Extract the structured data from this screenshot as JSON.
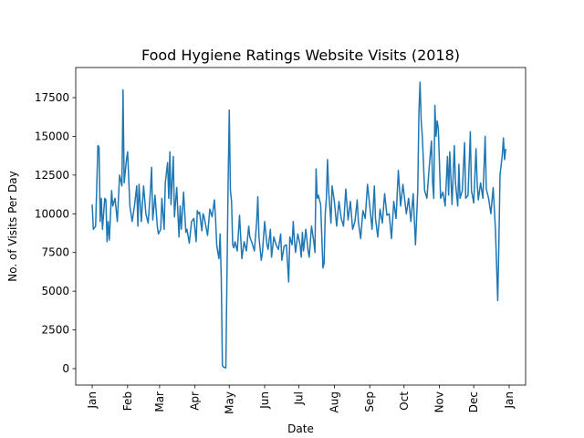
{
  "chart_data": {
    "type": "line",
    "title": "Food Hygiene Ratings Website Visits (2018)",
    "xlabel": "Date",
    "ylabel": "No. of Visits Per Day",
    "color": "#1f77b4",
    "x": [
      0,
      1,
      3,
      5,
      6,
      7,
      8,
      9,
      11,
      12,
      13,
      14,
      15,
      17,
      18,
      20,
      22,
      24,
      26,
      27,
      28,
      30,
      31,
      33,
      35,
      37,
      39,
      40,
      41,
      43,
      45,
      47,
      49,
      51,
      52,
      53,
      55,
      57,
      58,
      60,
      61,
      63,
      64,
      66,
      67,
      68,
      69,
      71,
      72,
      74,
      76,
      77,
      78,
      80,
      82,
      83,
      85,
      87,
      89,
      91,
      92,
      93,
      94,
      96,
      97,
      98,
      100,
      101,
      103,
      105,
      107,
      108,
      109,
      110,
      111,
      112,
      113,
      114,
      115,
      117,
      119,
      120,
      121,
      122,
      123,
      124,
      125,
      127,
      129,
      130,
      131,
      133,
      135,
      137,
      138,
      140,
      142,
      144,
      145,
      146,
      148,
      149,
      151,
      153,
      154,
      156,
      157,
      159,
      161,
      163,
      165,
      166,
      168,
      170,
      172,
      173,
      175,
      176,
      177,
      178,
      180,
      182,
      183,
      184,
      185,
      187,
      189,
      190,
      192,
      194,
      195,
      196,
      197,
      198,
      200,
      202,
      203,
      204,
      205,
      206,
      207,
      209,
      210,
      212,
      214,
      216,
      218,
      220,
      222,
      224,
      226,
      228,
      230,
      232,
      233,
      235,
      237,
      239,
      241,
      243,
      245,
      247,
      248,
      250,
      252,
      254,
      256,
      258,
      260,
      262,
      264,
      266,
      268,
      270,
      272,
      275,
      277,
      279,
      281,
      283,
      285,
      286,
      287,
      288,
      289,
      291,
      293,
      295,
      297,
      298,
      299,
      300,
      301,
      302,
      303,
      305,
      307,
      309,
      311,
      312,
      313,
      315,
      317,
      318,
      320,
      321,
      322,
      324,
      326,
      327,
      329,
      331,
      332,
      334,
      336,
      337,
      338,
      340,
      342,
      344,
      345,
      347,
      349,
      351,
      353,
      355,
      356,
      357,
      359,
      360,
      361,
      362
    ],
    "values": [
      10600,
      9000,
      9200,
      14400,
      14300,
      9500,
      11000,
      9000,
      11000,
      10900,
      8200,
      9500,
      8300,
      11500,
      10500,
      11000,
      9500,
      12500,
      11800,
      18000,
      12000,
      13500,
      14000,
      10500,
      9500,
      10500,
      11800,
      9200,
      11900,
      9500,
      11800,
      10000,
      9400,
      11500,
      13000,
      9600,
      11200,
      9200,
      8700,
      9000,
      11000,
      9000,
      12000,
      13300,
      11000,
      14000,
      10600,
      13700,
      9800,
      11700,
      8500,
      10500,
      9000,
      11400,
      8800,
      9000,
      8100,
      9500,
      9700,
      8200,
      10200,
      10000,
      10100,
      8900,
      10000,
      9800,
      9000,
      8600,
      10300,
      9800,
      10900,
      9700,
      8000,
      7500,
      7100,
      8700,
      5800,
      200,
      100,
      50,
      12000,
      16700,
      11500,
      10800,
      8000,
      7800,
      8200,
      7600,
      9900,
      8500,
      7100,
      8200,
      7600,
      9200,
      8500,
      8100,
      7600,
      9500,
      11100,
      8500,
      7000,
      7500,
      9500,
      8000,
      7700,
      9000,
      7200,
      8500,
      8000,
      7700,
      8700,
      7000,
      7900,
      8000,
      5600,
      8500,
      8000,
      9500,
      8300,
      7500,
      8700,
      8000,
      7200,
      8800,
      7600,
      9000,
      7600,
      7200,
      9200,
      8200,
      7500,
      12900,
      11000,
      11200,
      10600,
      6500,
      6800,
      10000,
      11000,
      13500,
      11500,
      9400,
      11800,
      10800,
      9200,
      10800,
      9700,
      9200,
      11600,
      9600,
      10800,
      9000,
      9500,
      10900,
      9500,
      8400,
      10200,
      9700,
      11900,
      10500,
      9000,
      11800,
      9700,
      8500,
      10300,
      9400,
      11300,
      9900,
      10000,
      8400,
      10800,
      9700,
      12800,
      10500,
      11900,
      10000,
      11000,
      9500,
      11300,
      8000,
      11500,
      16500,
      18500,
      16000,
      15000,
      11500,
      11000,
      13000,
      14700,
      12000,
      11000,
      17000,
      15000,
      16000,
      15500,
      11000,
      11400,
      10500,
      13700,
      11200,
      14000,
      10600,
      14400,
      12000,
      10500,
      13200,
      11000,
      11500,
      14600,
      11000,
      11200,
      15300,
      11500,
      10700,
      14200,
      12000,
      10900,
      12000,
      11000,
      15000,
      11600,
      11000,
      10000,
      11700,
      9000,
      4400,
      8000,
      12500,
      13800,
      14900,
      13500,
      14200
    ],
    "xlim": [
      -14.4,
      379.4
    ],
    "xticks": [
      {
        "value": 0,
        "label": "Jan"
      },
      {
        "value": 31,
        "label": "Feb"
      },
      {
        "value": 59,
        "label": "Mar"
      },
      {
        "value": 90,
        "label": "Apr"
      },
      {
        "value": 120,
        "label": "May"
      },
      {
        "value": 151,
        "label": "Jun"
      },
      {
        "value": 181,
        "label": "Jul"
      },
      {
        "value": 212,
        "label": "Aug"
      },
      {
        "value": 243,
        "label": "Sep"
      },
      {
        "value": 273,
        "label": "Oct"
      },
      {
        "value": 304,
        "label": "Nov"
      },
      {
        "value": 334,
        "label": "Dec"
      },
      {
        "value": 365,
        "label": "Jan"
      }
    ],
    "ylim": [
      -1061,
      19445
    ],
    "yticks": [
      0,
      2500,
      5000,
      7500,
      10000,
      12500,
      15000,
      17500
    ],
    "grid": false
  }
}
